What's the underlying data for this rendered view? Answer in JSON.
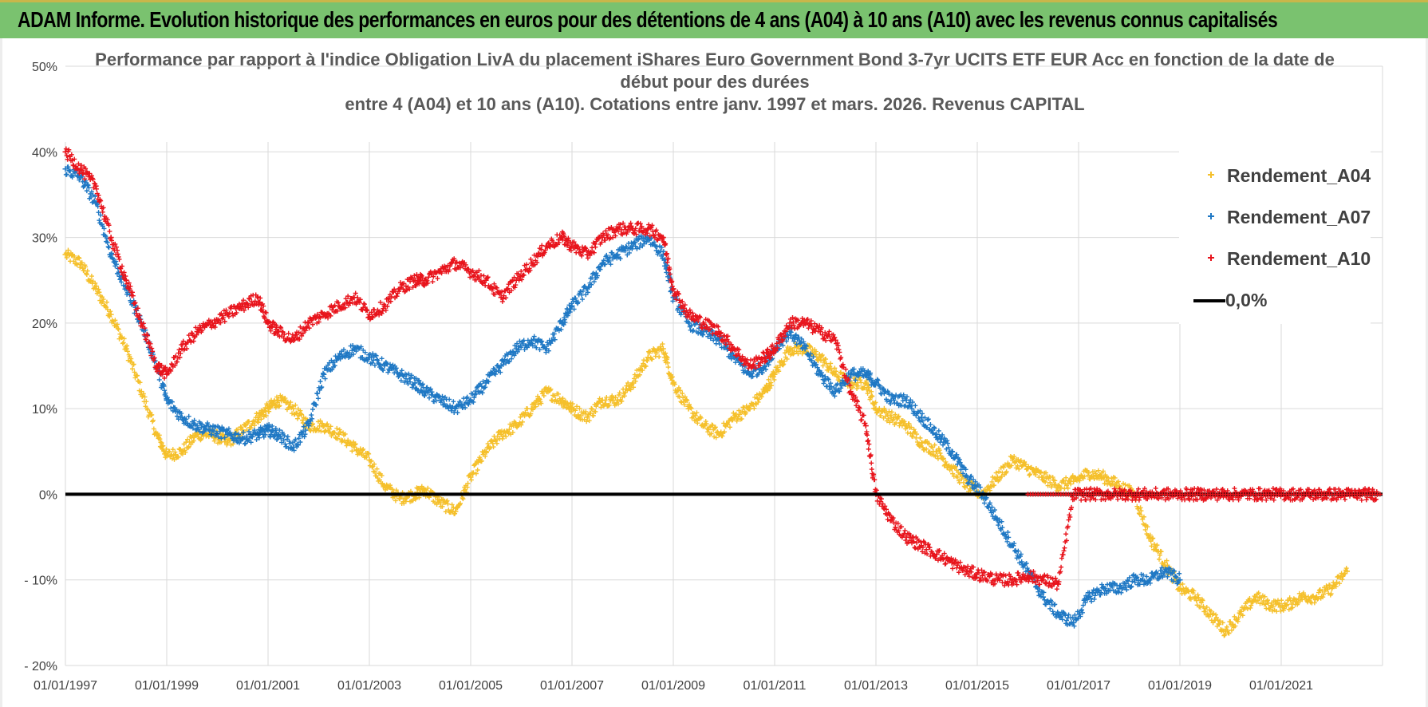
{
  "banner": {
    "title": "ADAM Informe. Evolution historique des performances en euros pour des détentions de 4 ans (A04) à 10 ans (A10) avec les revenus connus capitalisés"
  },
  "chart_data": {
    "type": "scatter",
    "title_lines": [
      "Performance par rapport à l'indice Obligation LivA  du placement iShares Euro Government Bond 3-7yr UCITS ETF EUR Acc en fonction de la date de",
      "début pour des durées",
      "entre 4 (A04) et 10 ans (A10). Cotations entre janv. 1997 et mars. 2026. Revenus CAPITAL"
    ],
    "xlabel": "",
    "ylabel": "",
    "x_range": [
      1997.0,
      2023.0
    ],
    "ylim": [
      -20,
      50
    ],
    "y_ticks": [
      -20,
      -10,
      0,
      10,
      20,
      30,
      40,
      50
    ],
    "y_tick_labels": [
      "- 20%",
      "- 10%",
      "0%",
      "10%",
      "20%",
      "30%",
      "40%",
      "50%"
    ],
    "x_ticks": [
      1997,
      1999,
      2001,
      2003,
      2005,
      2007,
      2009,
      2011,
      2013,
      2015,
      2017,
      2019,
      2021
    ],
    "x_tick_labels": [
      "01/01/1997",
      "01/01/1999",
      "01/01/2001",
      "01/01/2003",
      "01/01/2005",
      "01/01/2007",
      "01/01/2009",
      "01/01/2011",
      "01/01/2013",
      "01/01/2015",
      "01/01/2017",
      "01/01/2019",
      "01/01/2021"
    ],
    "legend_position": "top-right",
    "series": [
      {
        "name": "Rendement_A04",
        "color": "#f5c02b",
        "marker": "plus",
        "x": [
          1997.0,
          1997.3,
          1997.6,
          1997.9,
          1998.2,
          1998.5,
          1998.8,
          1999.0,
          1999.3,
          1999.6,
          1999.9,
          2000.2,
          2000.5,
          2000.8,
          2001.0,
          2001.2,
          2001.5,
          2001.8,
          2002.1,
          2002.4,
          2002.7,
          2003.0,
          2003.3,
          2003.6,
          2003.9,
          2004.1,
          2004.4,
          2004.7,
          2005.0,
          2005.3,
          2005.6,
          2005.9,
          2006.2,
          2006.5,
          2006.8,
          2007.0,
          2007.3,
          2007.6,
          2007.9,
          2008.2,
          2008.5,
          2008.8,
          2009.0,
          2009.3,
          2009.6,
          2009.9,
          2010.2,
          2010.5,
          2010.8,
          2011.0,
          2011.3,
          2011.6,
          2011.9,
          2012.2,
          2012.5,
          2012.8,
          2013.0,
          2013.3,
          2013.6,
          2013.9,
          2014.2,
          2014.5,
          2014.8,
          2015.1,
          2015.4,
          2015.7,
          2016.0,
          2016.3,
          2016.6,
          2016.9,
          2017.2,
          2017.5,
          2017.8,
          2018.1,
          2018.4,
          2018.7,
          2019.0,
          2019.3,
          2019.6,
          2019.9,
          2020.2,
          2020.5,
          2020.8,
          2021.1,
          2021.4,
          2021.7,
          2022.0,
          2022.3
        ],
        "y": [
          28,
          27,
          24,
          21,
          17,
          12,
          7,
          4.5,
          5,
          7,
          7,
          6,
          7.5,
          9,
          10,
          11,
          10,
          8,
          8,
          7,
          5.5,
          4,
          1,
          -0.5,
          0,
          0.5,
          -1,
          -2,
          2,
          5,
          7,
          8,
          10,
          12,
          11,
          10,
          9,
          11,
          11,
          13,
          16,
          17,
          13,
          10,
          8,
          7,
          9,
          10,
          12,
          14,
          17,
          17,
          16,
          14,
          13,
          13,
          10,
          9,
          8,
          6,
          5,
          3,
          1,
          0,
          2,
          4,
          3,
          2,
          1,
          1.5,
          2.5,
          2,
          1,
          0,
          -5,
          -8,
          -11,
          -12,
          -14,
          -16,
          -14,
          -12,
          -13,
          -13,
          -12,
          -12,
          -11,
          -9
        ]
      },
      {
        "name": "Rendement_A07",
        "color": "#1f78c4",
        "marker": "plus",
        "x": [
          1997.0,
          1997.3,
          1997.6,
          1997.9,
          1998.2,
          1998.5,
          1998.8,
          1999.0,
          1999.3,
          1999.6,
          1999.9,
          2000.2,
          2000.5,
          2000.8,
          2001.0,
          2001.2,
          2001.5,
          2001.8,
          2002.1,
          2002.4,
          2002.7,
          2003.0,
          2003.3,
          2003.6,
          2003.9,
          2004.1,
          2004.4,
          2004.7,
          2005.0,
          2005.3,
          2005.6,
          2005.9,
          2006.2,
          2006.5,
          2006.8,
          2007.0,
          2007.3,
          2007.6,
          2007.9,
          2008.2,
          2008.5,
          2008.8,
          2009.0,
          2009.3,
          2009.6,
          2009.9,
          2010.2,
          2010.5,
          2010.8,
          2011.0,
          2011.3,
          2011.6,
          2011.9,
          2012.2,
          2012.5,
          2012.8,
          2013.0,
          2013.3,
          2013.6,
          2013.9,
          2014.2,
          2014.5,
          2014.8,
          2015.1,
          2015.4,
          2015.7,
          2016.0,
          2016.3,
          2016.6,
          2016.9,
          2017.2,
          2017.5,
          2017.8,
          2018.1,
          2018.4,
          2018.7,
          2019.0
        ],
        "y": [
          38,
          37,
          34,
          28,
          24,
          20,
          15,
          11,
          9,
          8,
          7.5,
          7,
          6.5,
          7,
          7.5,
          7,
          5.5,
          8,
          14,
          16,
          17,
          16,
          15,
          14,
          13,
          12,
          11,
          10,
          11,
          13,
          15,
          17,
          18,
          17,
          20,
          22,
          24,
          27,
          28,
          29,
          30,
          28,
          23,
          20,
          19,
          18,
          16,
          14,
          15,
          17,
          19,
          17,
          14,
          12,
          14,
          14,
          13,
          11,
          11,
          9,
          7,
          5,
          2,
          0,
          -3,
          -6,
          -9,
          -12,
          -14,
          -15,
          -12,
          -11,
          -11,
          -10,
          -10,
          -9,
          -10
        ]
      },
      {
        "name": "Rendement_A10",
        "color": "#e8141c",
        "marker": "plus",
        "x": [
          1997.0,
          1997.3,
          1997.6,
          1997.9,
          1998.2,
          1998.5,
          1998.8,
          1999.0,
          1999.3,
          1999.6,
          1999.9,
          2000.2,
          2000.5,
          2000.8,
          2001.0,
          2001.2,
          2001.5,
          2001.8,
          2002.1,
          2002.4,
          2002.7,
          2003.0,
          2003.3,
          2003.6,
          2003.9,
          2004.1,
          2004.4,
          2004.7,
          2005.0,
          2005.3,
          2005.6,
          2005.9,
          2006.2,
          2006.5,
          2006.8,
          2007.0,
          2007.3,
          2007.6,
          2007.9,
          2008.2,
          2008.5,
          2008.8,
          2009.0,
          2009.3,
          2009.6,
          2009.9,
          2010.2,
          2010.5,
          2010.8,
          2011.0,
          2011.3,
          2011.6,
          2011.9,
          2012.2,
          2012.5,
          2012.8,
          2013.0,
          2013.3,
          2013.6,
          2013.9,
          2014.2,
          2014.5,
          2014.8,
          2015.1,
          2015.4,
          2015.7,
          2016.0,
          2016.3,
          2016.6,
          2016.9,
          2017.2,
          2017.5,
          2017.8,
          2018.1,
          2018.4,
          2018.7,
          2019.0,
          2019.3,
          2019.6,
          2019.9,
          2020.2,
          2020.5,
          2020.8,
          2021.1,
          2021.4,
          2021.7,
          2022.0,
          2022.3,
          2022.6,
          2022.9
        ],
        "y": [
          40,
          38,
          36,
          30,
          25,
          20,
          15,
          14,
          17,
          19,
          20,
          21,
          22,
          23,
          20,
          19,
          18,
          20,
          21,
          22,
          23,
          21,
          22,
          24,
          25,
          25,
          26,
          27,
          26,
          25,
          23,
          25,
          27,
          29,
          30,
          29,
          28,
          30,
          31,
          31,
          31,
          30,
          24,
          21,
          20,
          19,
          17,
          15,
          16,
          17,
          20,
          20,
          19,
          18,
          12,
          8,
          0,
          -3,
          -5,
          -6,
          -7,
          -8,
          -9,
          -9.5,
          -10,
          -10,
          -9.5,
          -10,
          -10.5,
          0,
          0,
          0,
          0,
          0,
          0,
          0,
          0,
          0,
          0,
          0,
          0,
          0,
          0,
          0,
          0,
          0,
          0,
          0,
          0,
          0
        ]
      },
      {
        "name": "0,0%",
        "color": "#000000",
        "marker": "line",
        "x": [
          1997.0,
          2023.0
        ],
        "y": [
          0,
          0
        ]
      }
    ]
  }
}
